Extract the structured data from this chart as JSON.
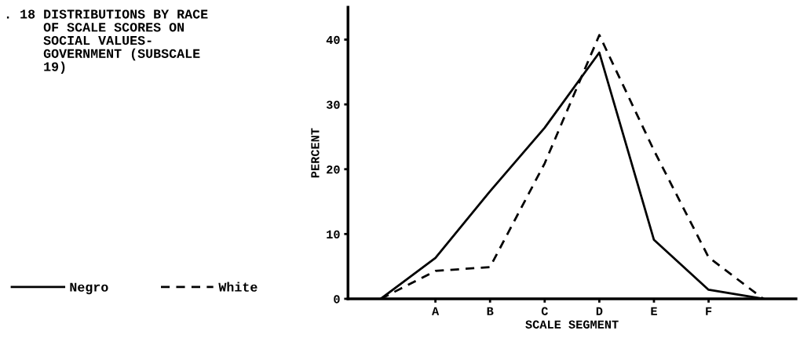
{
  "chart_data": {
    "type": "line",
    "title": ". 18 DISTRIBUTIONS BY RACE\n     OF SCALE SCORES ON\n     SOCIAL VALUES-\n     GOVERNMENT (SUBSCALE\n     19)",
    "xlabel": "SCALE SEGMENT",
    "ylabel": "PERCENT",
    "categories": [
      null,
      "A",
      "B",
      "C",
      "D",
      "E",
      "F",
      null
    ],
    "series": [
      {
        "name": "Negro",
        "color": "#000000",
        "line_style": "solid",
        "values": [
          0,
          6.3,
          16.6,
          26.4,
          38.0,
          9.1,
          1.4,
          0
        ]
      },
      {
        "name": "White",
        "color": "#000000",
        "line_style": "dashed",
        "values": [
          0,
          4.3,
          4.9,
          20.9,
          40.7,
          22.9,
          6.4,
          0
        ]
      }
    ],
    "ylim": [
      0,
      45
    ],
    "yticks": [
      0,
      10,
      20,
      30,
      40
    ],
    "grid": false,
    "legend": "left",
    "marker": "none"
  }
}
